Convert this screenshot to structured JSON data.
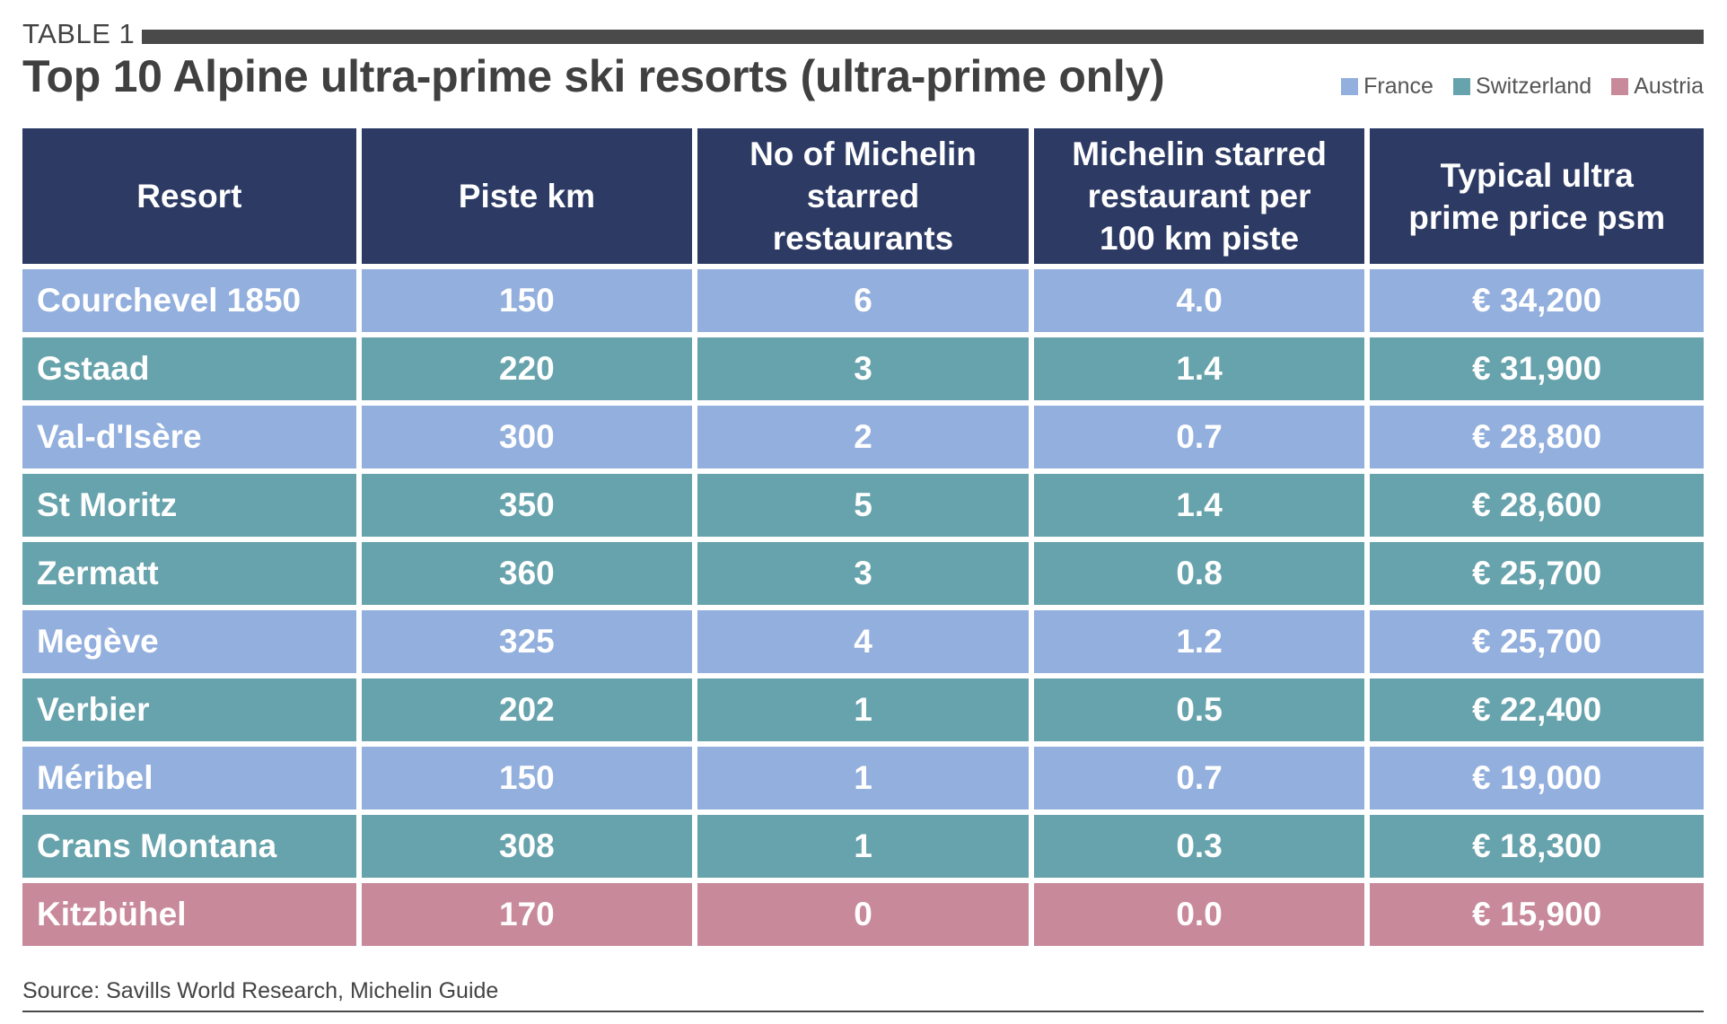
{
  "label": "TABLE 1",
  "title": "Top 10 Alpine ultra-prime ski resorts (ultra-prime only)",
  "legend": [
    {
      "label": "France",
      "color": "#92afdd"
    },
    {
      "label": "Switzerland",
      "color": "#67a3ac"
    },
    {
      "label": "Austria",
      "color": "#c8899b"
    }
  ],
  "colors": {
    "header": "#2c3a64",
    "France": "#92afdd",
    "Switzerland": "#67a3ac",
    "Austria": "#c8899b"
  },
  "columns": [
    "Resort",
    "Piste km",
    "No of Michelin starred restaurants",
    "Michelin starred restaurant per 100 km piste",
    "Typical ultra prime price psm"
  ],
  "rows": [
    {
      "country": "France",
      "cells": [
        "Courchevel 1850",
        "150",
        "6",
        "4.0",
        "€ 34,200"
      ]
    },
    {
      "country": "Switzerland",
      "cells": [
        "Gstaad",
        "220",
        "3",
        "1.4",
        "€ 31,900"
      ]
    },
    {
      "country": "France",
      "cells": [
        "Val-d'Isère",
        "300",
        "2",
        "0.7",
        "€ 28,800"
      ]
    },
    {
      "country": "Switzerland",
      "cells": [
        "St Moritz",
        "350",
        "5",
        "1.4",
        "€ 28,600"
      ]
    },
    {
      "country": "Switzerland",
      "cells": [
        "Zermatt",
        "360",
        "3",
        "0.8",
        "€ 25,700"
      ]
    },
    {
      "country": "France",
      "cells": [
        "Megève",
        "325",
        "4",
        "1.2",
        "€ 25,700"
      ]
    },
    {
      "country": "Switzerland",
      "cells": [
        "Verbier",
        "202",
        "1",
        "0.5",
        "€ 22,400"
      ]
    },
    {
      "country": "France",
      "cells": [
        "Méribel",
        "150",
        "1",
        "0.7",
        "€ 19,000"
      ]
    },
    {
      "country": "Switzerland",
      "cells": [
        "Crans Montana",
        "308",
        "1",
        "0.3",
        "€ 18,300"
      ]
    },
    {
      "country": "Austria",
      "cells": [
        "Kitzbühel",
        "170",
        "0",
        "0.0",
        "€ 15,900"
      ]
    }
  ],
  "source": "Source: Savills World Research, Michelin Guide"
}
